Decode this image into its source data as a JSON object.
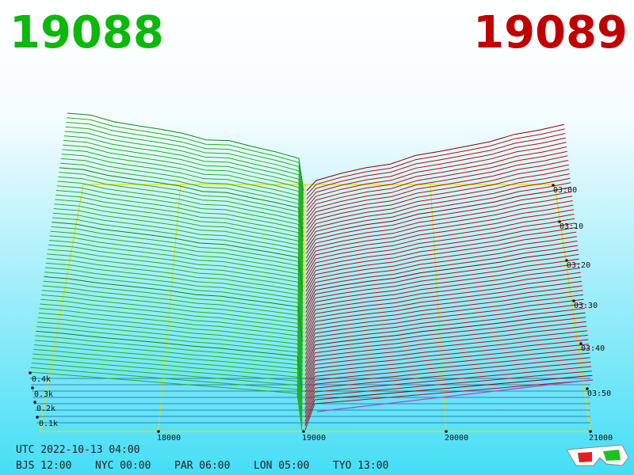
{
  "header": {
    "bid": "19088",
    "ask": "19089"
  },
  "price_axis": {
    "ticks": [
      "18000",
      "19000",
      "20000",
      "21000"
    ]
  },
  "depth_axis": {
    "ticks": [
      "0.4k",
      "0.3k",
      "0.2k",
      "0.1k"
    ]
  },
  "time_axis": {
    "ticks": [
      "03:00",
      "03:10",
      "03:20",
      "03:30",
      "03:40",
      "03:50"
    ]
  },
  "footer": {
    "utc": "UTC 2022-10-13 04:00",
    "zones": [
      "BJS 12:00",
      "NYC 00:00",
      "PAR 06:00",
      "LON 05:00",
      "TYO 13:00"
    ]
  }
}
